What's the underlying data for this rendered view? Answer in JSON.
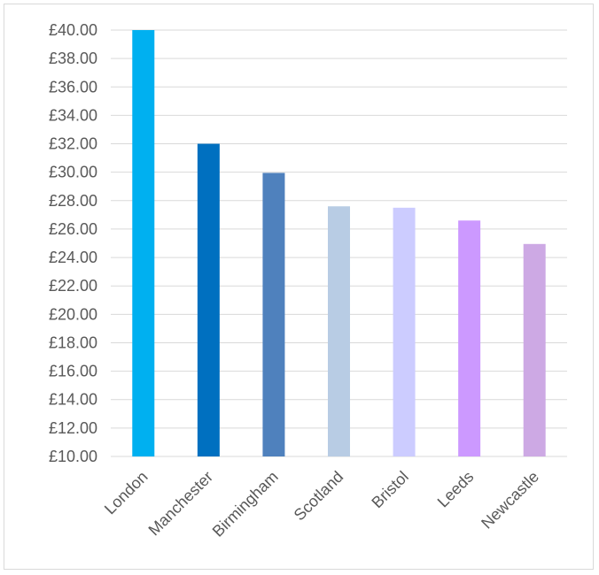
{
  "chart_data": {
    "type": "bar",
    "categories": [
      "London",
      "Manchester",
      "Birmingham",
      "Scotland",
      "Bristol",
      "Leeds",
      "Newcastle"
    ],
    "values": [
      40.0,
      32.0,
      29.95,
      27.6,
      27.5,
      26.6,
      24.95
    ],
    "colors": [
      "#00b0f0",
      "#0070c0",
      "#4f81bd",
      "#b8cce4",
      "#ccccff",
      "#cc99ff",
      "#cda9e4"
    ],
    "ylim": [
      10,
      40
    ],
    "ytick_step": 2,
    "ytick_labels": [
      "£10.00",
      "£12.00",
      "£14.00",
      "£16.00",
      "£18.00",
      "£20.00",
      "£22.00",
      "£24.00",
      "£26.00",
      "£28.00",
      "£30.00",
      "£32.00",
      "£34.00",
      "£36.00",
      "£38.00",
      "£40.00"
    ],
    "title": "",
    "xlabel": "",
    "ylabel": "",
    "grid": true,
    "legend": "none"
  }
}
